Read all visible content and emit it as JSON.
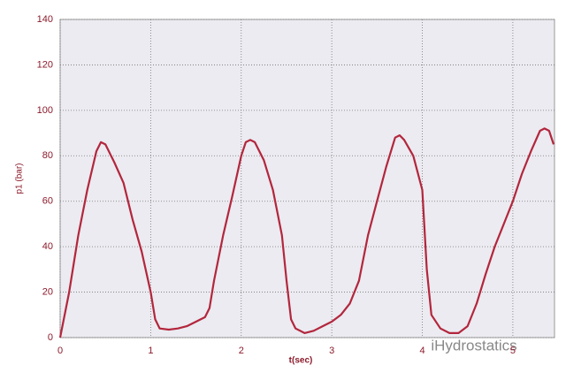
{
  "chart_data": {
    "type": "line",
    "x_label": "t(sec)",
    "y_label": "p1 (bar)",
    "watermark": "iHydrostatics",
    "xlim": [
      0,
      5.46
    ],
    "ylim": [
      0,
      140
    ],
    "xticks": [
      0,
      1,
      2,
      3,
      4,
      5
    ],
    "yticks": [
      0,
      20,
      40,
      60,
      80,
      100,
      120,
      140
    ],
    "grid": true,
    "series": [
      {
        "color": "#b3263c",
        "x": [
          0,
          0.1,
          0.2,
          0.3,
          0.4,
          0.45,
          0.5,
          0.6,
          0.7,
          0.8,
          0.9,
          1.0,
          1.05,
          1.1,
          1.2,
          1.3,
          1.4,
          1.5,
          1.6,
          1.65,
          1.7,
          1.8,
          1.9,
          2.0,
          2.05,
          2.1,
          2.15,
          2.25,
          2.35,
          2.45,
          2.5,
          2.55,
          2.6,
          2.7,
          2.8,
          2.9,
          3.0,
          3.1,
          3.2,
          3.3,
          3.4,
          3.5,
          3.6,
          3.7,
          3.75,
          3.8,
          3.9,
          4.0,
          4.05,
          4.1,
          4.2,
          4.3,
          4.4,
          4.5,
          4.6,
          4.7,
          4.8,
          4.9,
          5.0,
          5.1,
          5.2,
          5.3,
          5.35,
          5.4,
          5.45
        ],
        "values": [
          0,
          20,
          45,
          65,
          82,
          86,
          85,
          77,
          68,
          52,
          38,
          20,
          8,
          4,
          3.5,
          4,
          5,
          7,
          9,
          13,
          25,
          45,
          62,
          80,
          86,
          87,
          86,
          78,
          65,
          45,
          25,
          8,
          4,
          2,
          3,
          5,
          7,
          10,
          15,
          25,
          45,
          60,
          75,
          88,
          89,
          87,
          80,
          65,
          30,
          10,
          4,
          2,
          2,
          5,
          15,
          28,
          40,
          50,
          60,
          72,
          82,
          91,
          92,
          91,
          85
        ]
      }
    ]
  }
}
